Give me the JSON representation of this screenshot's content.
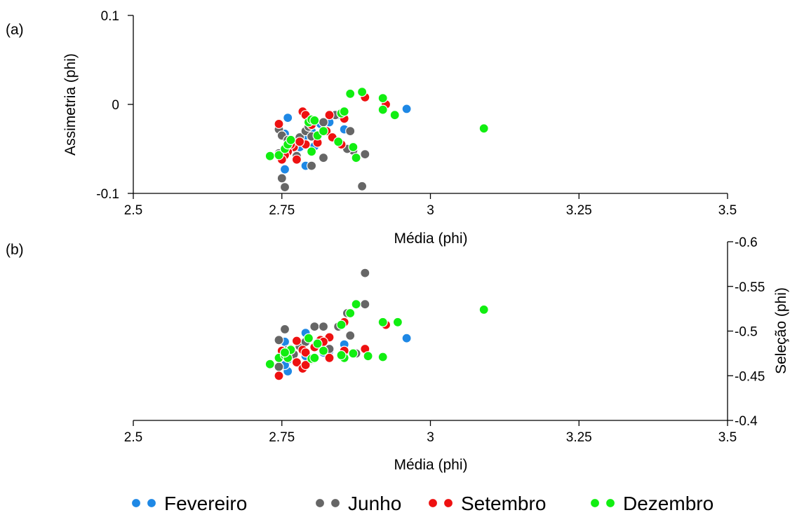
{
  "legend": [
    {
      "name": "Fevereiro",
      "color": "#1e88e5"
    },
    {
      "name": "Junho",
      "color": "#666666"
    },
    {
      "name": "Setembro",
      "color": "#ee1111"
    },
    {
      "name": "Dezembro",
      "color": "#11ee11"
    }
  ],
  "chart_data": [
    {
      "type": "scatter",
      "panel_label": "(a)",
      "xlabel": "Média (phi)",
      "ylabel": "Assimetria (phi)",
      "xlim": [
        2.5,
        3.5
      ],
      "ylim": [
        -0.1,
        0.1
      ],
      "xticks": [
        "2.5",
        "2.75",
        "3",
        "3.25",
        "3.5"
      ],
      "xtick_values": [
        2.5,
        2.75,
        3.0,
        3.25,
        3.5
      ],
      "yticks": [
        "0.1",
        "0",
        "-0.1"
      ],
      "ytick_values": [
        0.1,
        0.0,
        -0.1
      ],
      "yaxis_side": "left",
      "series": [
        {
          "name": "Fevereiro",
          "color": "#1e88e5",
          "points": [
            [
              2.76,
              -0.015
            ],
            [
              2.755,
              -0.033
            ],
            [
              2.79,
              -0.035
            ],
            [
              2.8,
              -0.03
            ],
            [
              2.815,
              -0.022
            ],
            [
              2.83,
              -0.02
            ],
            [
              2.845,
              -0.012
            ],
            [
              2.855,
              -0.028
            ],
            [
              2.755,
              -0.073
            ],
            [
              2.79,
              -0.069
            ],
            [
              2.77,
              -0.043
            ],
            [
              2.805,
              -0.047
            ],
            [
              2.78,
              -0.048
            ],
            [
              2.96,
              -0.005
            ]
          ]
        },
        {
          "name": "Junho",
          "color": "#666666",
          "points": [
            [
              2.745,
              -0.028
            ],
            [
              2.75,
              -0.035
            ],
            [
              2.76,
              -0.04
            ],
            [
              2.77,
              -0.048
            ],
            [
              2.78,
              -0.037
            ],
            [
              2.79,
              -0.03
            ],
            [
              2.795,
              -0.025
            ],
            [
              2.8,
              -0.036
            ],
            [
              2.82,
              -0.02
            ],
            [
              2.84,
              -0.012
            ],
            [
              2.85,
              -0.01
            ],
            [
              2.865,
              -0.03
            ],
            [
              2.89,
              -0.056
            ],
            [
              2.87,
              -0.052
            ],
            [
              2.86,
              -0.05
            ],
            [
              2.82,
              -0.06
            ],
            [
              2.8,
              -0.069
            ],
            [
              2.75,
              -0.083
            ],
            [
              2.755,
              -0.093
            ],
            [
              2.885,
              -0.092
            ],
            [
              2.775,
              -0.058
            ],
            [
              2.745,
              -0.055
            ]
          ]
        },
        {
          "name": "Setembro",
          "color": "#ee1111",
          "points": [
            [
              2.745,
              -0.022
            ],
            [
              2.785,
              -0.008
            ],
            [
              2.79,
              -0.012
            ],
            [
              2.8,
              -0.023
            ],
            [
              2.81,
              -0.043
            ],
            [
              2.825,
              -0.03
            ],
            [
              2.83,
              -0.012
            ],
            [
              2.835,
              -0.037
            ],
            [
              2.855,
              -0.016
            ],
            [
              2.89,
              0.008
            ],
            [
              2.925,
              0.0
            ],
            [
              2.77,
              -0.048
            ],
            [
              2.76,
              -0.053
            ],
            [
              2.755,
              -0.057
            ],
            [
              2.75,
              -0.062
            ],
            [
              2.775,
              -0.062
            ],
            [
              2.79,
              -0.045
            ],
            [
              2.85,
              -0.045
            ],
            [
              2.78,
              -0.042
            ],
            [
              2.765,
              -0.045
            ]
          ]
        },
        {
          "name": "Dezembro",
          "color": "#11ee11",
          "points": [
            [
              2.73,
              -0.058
            ],
            [
              2.745,
              -0.057
            ],
            [
              2.755,
              -0.05
            ],
            [
              2.76,
              -0.045
            ],
            [
              2.765,
              -0.04
            ],
            [
              2.795,
              -0.02
            ],
            [
              2.8,
              -0.017
            ],
            [
              2.805,
              -0.018
            ],
            [
              2.81,
              -0.035
            ],
            [
              2.82,
              -0.03
            ],
            [
              2.845,
              -0.042
            ],
            [
              2.85,
              -0.01
            ],
            [
              2.855,
              -0.008
            ],
            [
              2.865,
              0.012
            ],
            [
              2.875,
              -0.06
            ],
            [
              2.87,
              -0.048
            ],
            [
              2.885,
              0.014
            ],
            [
              2.92,
              0.007
            ],
            [
              2.92,
              -0.006
            ],
            [
              2.94,
              -0.012
            ],
            [
              2.8,
              -0.053
            ],
            [
              3.09,
              -0.027
            ]
          ]
        }
      ]
    },
    {
      "type": "scatter",
      "panel_label": "(b)",
      "xlabel": "Média (phi)",
      "ylabel": "Seleção (phi)",
      "xlim": [
        2.5,
        3.5
      ],
      "ylim": [
        -0.6,
        -0.4
      ],
      "yaxis_reversed": true,
      "xticks": [
        "2.5",
        "2.75",
        "3",
        "3.25",
        "3.5"
      ],
      "xtick_values": [
        2.5,
        2.75,
        3.0,
        3.25,
        3.5
      ],
      "yticks": [
        "-0.6",
        "-0.55",
        "-0.5",
        "-0.45",
        "-0.4"
      ],
      "ytick_values": [
        -0.6,
        -0.55,
        -0.5,
        -0.45,
        -0.4
      ],
      "yaxis_side": "right",
      "series": [
        {
          "name": "Fevereiro",
          "color": "#1e88e5",
          "points": [
            [
              2.755,
              -0.488
            ],
            [
              2.79,
              -0.498
            ],
            [
              2.805,
              -0.482
            ],
            [
              2.815,
              -0.487
            ],
            [
              2.83,
              -0.478
            ],
            [
              2.855,
              -0.485
            ],
            [
              2.76,
              -0.468
            ],
            [
              2.76,
              -0.455
            ],
            [
              2.79,
              -0.472
            ],
            [
              2.82,
              -0.476
            ],
            [
              2.755,
              -0.462
            ],
            [
              2.96,
              -0.492
            ]
          ]
        },
        {
          "name": "Junho",
          "color": "#666666",
          "points": [
            [
              2.755,
              -0.502
            ],
            [
              2.745,
              -0.49
            ],
            [
              2.75,
              -0.475
            ],
            [
              2.76,
              -0.479
            ],
            [
              2.78,
              -0.483
            ],
            [
              2.79,
              -0.488
            ],
            [
              2.805,
              -0.505
            ],
            [
              2.82,
              -0.505
            ],
            [
              2.845,
              -0.505
            ],
            [
              2.86,
              -0.52
            ],
            [
              2.89,
              -0.53
            ],
            [
              2.89,
              -0.565
            ],
            [
              2.865,
              -0.495
            ],
            [
              2.83,
              -0.48
            ],
            [
              2.8,
              -0.468
            ],
            [
              2.745,
              -0.46
            ],
            [
              2.77,
              -0.474
            ],
            [
              2.855,
              -0.47
            ],
            [
              2.875,
              -0.475
            ]
          ]
        },
        {
          "name": "Setembro",
          "color": "#ee1111",
          "points": [
            [
              2.745,
              -0.45
            ],
            [
              2.775,
              -0.465
            ],
            [
              2.785,
              -0.458
            ],
            [
              2.79,
              -0.462
            ],
            [
              2.75,
              -0.478
            ],
            [
              2.765,
              -0.48
            ],
            [
              2.785,
              -0.479
            ],
            [
              2.805,
              -0.482
            ],
            [
              2.815,
              -0.49
            ],
            [
              2.83,
              -0.493
            ],
            [
              2.855,
              -0.51
            ],
            [
              2.89,
              -0.48
            ],
            [
              2.925,
              -0.507
            ],
            [
              2.775,
              -0.489
            ],
            [
              2.79,
              -0.476
            ],
            [
              2.83,
              -0.47
            ],
            [
              2.855,
              -0.478
            ],
            [
              2.82,
              -0.488
            ]
          ]
        },
        {
          "name": "Dezembro",
          "color": "#11ee11",
          "points": [
            [
              2.73,
              -0.463
            ],
            [
              2.745,
              -0.47
            ],
            [
              2.755,
              -0.473
            ],
            [
              2.76,
              -0.47
            ],
            [
              2.765,
              -0.479
            ],
            [
              2.8,
              -0.469
            ],
            [
              2.805,
              -0.47
            ],
            [
              2.81,
              -0.486
            ],
            [
              2.795,
              -0.492
            ],
            [
              2.82,
              -0.478
            ],
            [
              2.85,
              -0.507
            ],
            [
              2.855,
              -0.47
            ],
            [
              2.865,
              -0.52
            ],
            [
              2.87,
              -0.475
            ],
            [
              2.875,
              -0.53
            ],
            [
              2.895,
              -0.472
            ],
            [
              2.92,
              -0.471
            ],
            [
              2.92,
              -0.51
            ],
            [
              2.945,
              -0.51
            ],
            [
              3.09,
              -0.524
            ],
            [
              2.85,
              -0.473
            ],
            [
              2.755,
              -0.476
            ]
          ]
        }
      ]
    }
  ]
}
